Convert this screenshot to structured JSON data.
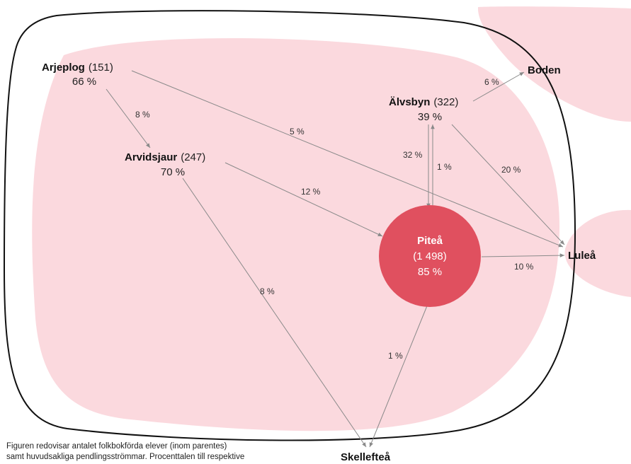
{
  "colors": {
    "region_fill": "#fbd9de",
    "center_fill": "#e0505f",
    "boundary_stroke": "#111111",
    "arrow_stroke": "#8a8a8a"
  },
  "nodes": {
    "arjeplog": {
      "name": "Arjeplog",
      "count": "(151)",
      "pct": "66 %"
    },
    "arvidsjaur": {
      "name": "Arvidsjaur",
      "count": "(247)",
      "pct": "70 %"
    },
    "alvsbyn": {
      "name": "Älvsbyn",
      "count": "(322)",
      "pct": "39 %"
    },
    "pitea": {
      "name": "Piteå",
      "count": "(1 498)",
      "pct": "85 %"
    }
  },
  "destinations": {
    "boden": "Boden",
    "lulea": "Luleå",
    "skelleftea": "Skellefteå"
  },
  "flows": {
    "arjeplog_arvidsjaur": "8 %",
    "arjeplog_lulea": "5 %",
    "arvidsjaur_pitea": "12 %",
    "arvidsjaur_skelleftea": "8 %",
    "alvsbyn_boden": "6 %",
    "alvsbyn_pitea": "32 %",
    "pitea_alvsbyn": "1 %",
    "alvsbyn_lulea": "20 %",
    "pitea_lulea": "10 %",
    "pitea_skelleftea": "1 %"
  },
  "caption": {
    "line1": "Figuren redovisar antalet folkbokförda elever (inom parentes)",
    "line2": "samt huvudsakliga pendlingsströmmar. Procenttalen till respektive"
  }
}
